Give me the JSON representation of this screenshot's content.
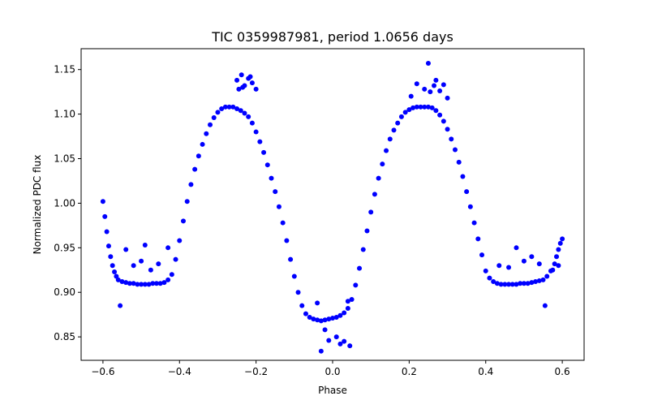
{
  "chart_data": {
    "type": "scatter",
    "title": "TIC 0359987981, period 1.0656 days",
    "xlabel": "Phase",
    "ylabel": "Normalized PDC flux",
    "xlim": [
      -0.657,
      0.657
    ],
    "ylim": [
      0.8237,
      1.1734
    ],
    "xticks": [
      -0.6,
      -0.4,
      -0.2,
      0.0,
      0.2,
      0.4,
      0.6
    ],
    "xtick_labels": [
      "−0.6",
      "−0.4",
      "−0.2",
      "0.0",
      "0.2",
      "0.4",
      "0.6"
    ],
    "yticks": [
      0.85,
      0.9,
      0.95,
      1.0,
      1.05,
      1.1,
      1.15
    ],
    "ytick_labels": [
      "0.85",
      "0.90",
      "0.95",
      "1.00",
      "1.05",
      "1.10",
      "1.15"
    ],
    "grid": false,
    "legend": "none",
    "marker_color": "#0000ff",
    "series": [
      {
        "x": [
          -0.6,
          -0.595,
          -0.59,
          -0.585,
          -0.58,
          -0.575,
          -0.57,
          -0.565,
          -0.56,
          -0.55,
          -0.54,
          -0.53,
          -0.52,
          -0.51,
          -0.5,
          -0.49,
          -0.48,
          -0.47,
          -0.46,
          -0.45,
          -0.44,
          -0.43,
          -0.42,
          -0.41,
          -0.4,
          -0.39,
          -0.38,
          -0.37,
          -0.36,
          -0.35,
          -0.34,
          -0.33,
          -0.32,
          -0.31,
          -0.3,
          -0.29,
          -0.28,
          -0.27,
          -0.26,
          -0.25,
          -0.24,
          -0.23,
          -0.22,
          -0.21,
          -0.2,
          -0.19,
          -0.18,
          -0.17,
          -0.16,
          -0.15,
          -0.14,
          -0.13,
          -0.12,
          -0.11,
          -0.1,
          -0.09,
          -0.08,
          -0.07,
          -0.06,
          -0.05,
          -0.04,
          -0.03,
          -0.02,
          -0.01,
          0.0,
          0.01,
          0.02,
          0.03,
          0.04,
          0.05,
          0.06,
          0.07,
          0.08,
          0.09,
          0.1,
          0.11,
          0.12,
          0.13,
          0.14,
          0.15,
          0.16,
          0.17,
          0.18,
          0.19,
          0.2,
          0.21,
          0.22,
          0.23,
          0.24,
          0.25,
          0.26,
          0.27,
          0.28,
          0.29,
          0.3,
          0.31,
          0.32,
          0.33,
          0.34,
          0.35,
          0.36,
          0.37,
          0.38,
          0.39,
          0.4,
          0.41,
          0.42,
          0.43,
          0.44,
          0.45,
          0.46,
          0.47,
          0.48,
          0.49,
          0.5,
          0.51,
          0.52,
          0.53,
          0.54,
          0.55,
          0.56,
          0.57,
          0.58,
          0.585,
          0.59,
          0.595,
          0.6
        ],
        "y": [
          1.002,
          0.985,
          0.968,
          0.952,
          0.94,
          0.93,
          0.923,
          0.918,
          0.914,
          0.912,
          0.911,
          0.91,
          0.91,
          0.909,
          0.909,
          0.909,
          0.909,
          0.91,
          0.91,
          0.91,
          0.911,
          0.914,
          0.92,
          0.937,
          0.958,
          0.98,
          1.002,
          1.021,
          1.038,
          1.053,
          1.066,
          1.078,
          1.088,
          1.096,
          1.102,
          1.106,
          1.108,
          1.108,
          1.108,
          1.106,
          1.104,
          1.101,
          1.097,
          1.09,
          1.08,
          1.069,
          1.057,
          1.043,
          1.028,
          1.013,
          0.996,
          0.978,
          0.958,
          0.937,
          0.918,
          0.9,
          0.885,
          0.876,
          0.872,
          0.87,
          0.869,
          0.868,
          0.869,
          0.87,
          0.871,
          0.872,
          0.874,
          0.877,
          0.882,
          0.892,
          0.908,
          0.927,
          0.948,
          0.969,
          0.99,
          1.01,
          1.028,
          1.044,
          1.059,
          1.072,
          1.082,
          1.09,
          1.097,
          1.102,
          1.105,
          1.107,
          1.108,
          1.108,
          1.108,
          1.108,
          1.107,
          1.104,
          1.099,
          1.092,
          1.083,
          1.072,
          1.06,
          1.046,
          1.03,
          1.013,
          0.996,
          0.978,
          0.96,
          0.942,
          0.924,
          0.916,
          0.912,
          0.91,
          0.909,
          0.909,
          0.909,
          0.909,
          0.909,
          0.91,
          0.91,
          0.91,
          0.911,
          0.912,
          0.913,
          0.914,
          0.918,
          0.924,
          0.932,
          0.94,
          0.948,
          0.955,
          0.96
        ]
      },
      {
        "x": [
          -0.555,
          -0.54,
          -0.52,
          -0.5,
          -0.49,
          -0.475,
          -0.455,
          -0.43,
          -0.25,
          -0.245,
          -0.238,
          -0.23,
          -0.22,
          -0.21,
          -0.2,
          -0.235,
          -0.215,
          -0.03,
          -0.02,
          -0.01,
          0.01,
          0.02,
          0.03,
          0.045,
          -0.04,
          0.04,
          0.205,
          0.22,
          0.24,
          0.25,
          0.265,
          0.27,
          0.28,
          0.29,
          0.3,
          0.255,
          0.435,
          0.46,
          0.48,
          0.5,
          0.52,
          0.54,
          0.555,
          0.575,
          0.59
        ],
        "y": [
          0.885,
          0.948,
          0.93,
          0.935,
          0.953,
          0.925,
          0.932,
          0.95,
          1.138,
          1.128,
          1.144,
          1.132,
          1.14,
          1.135,
          1.128,
          1.13,
          1.142,
          0.834,
          0.858,
          0.846,
          0.85,
          0.842,
          0.845,
          0.84,
          0.888,
          0.89,
          1.12,
          1.134,
          1.128,
          1.157,
          1.132,
          1.138,
          1.126,
          1.133,
          1.118,
          1.125,
          0.93,
          0.928,
          0.95,
          0.935,
          0.94,
          0.932,
          0.885,
          0.925,
          0.93
        ]
      }
    ]
  }
}
